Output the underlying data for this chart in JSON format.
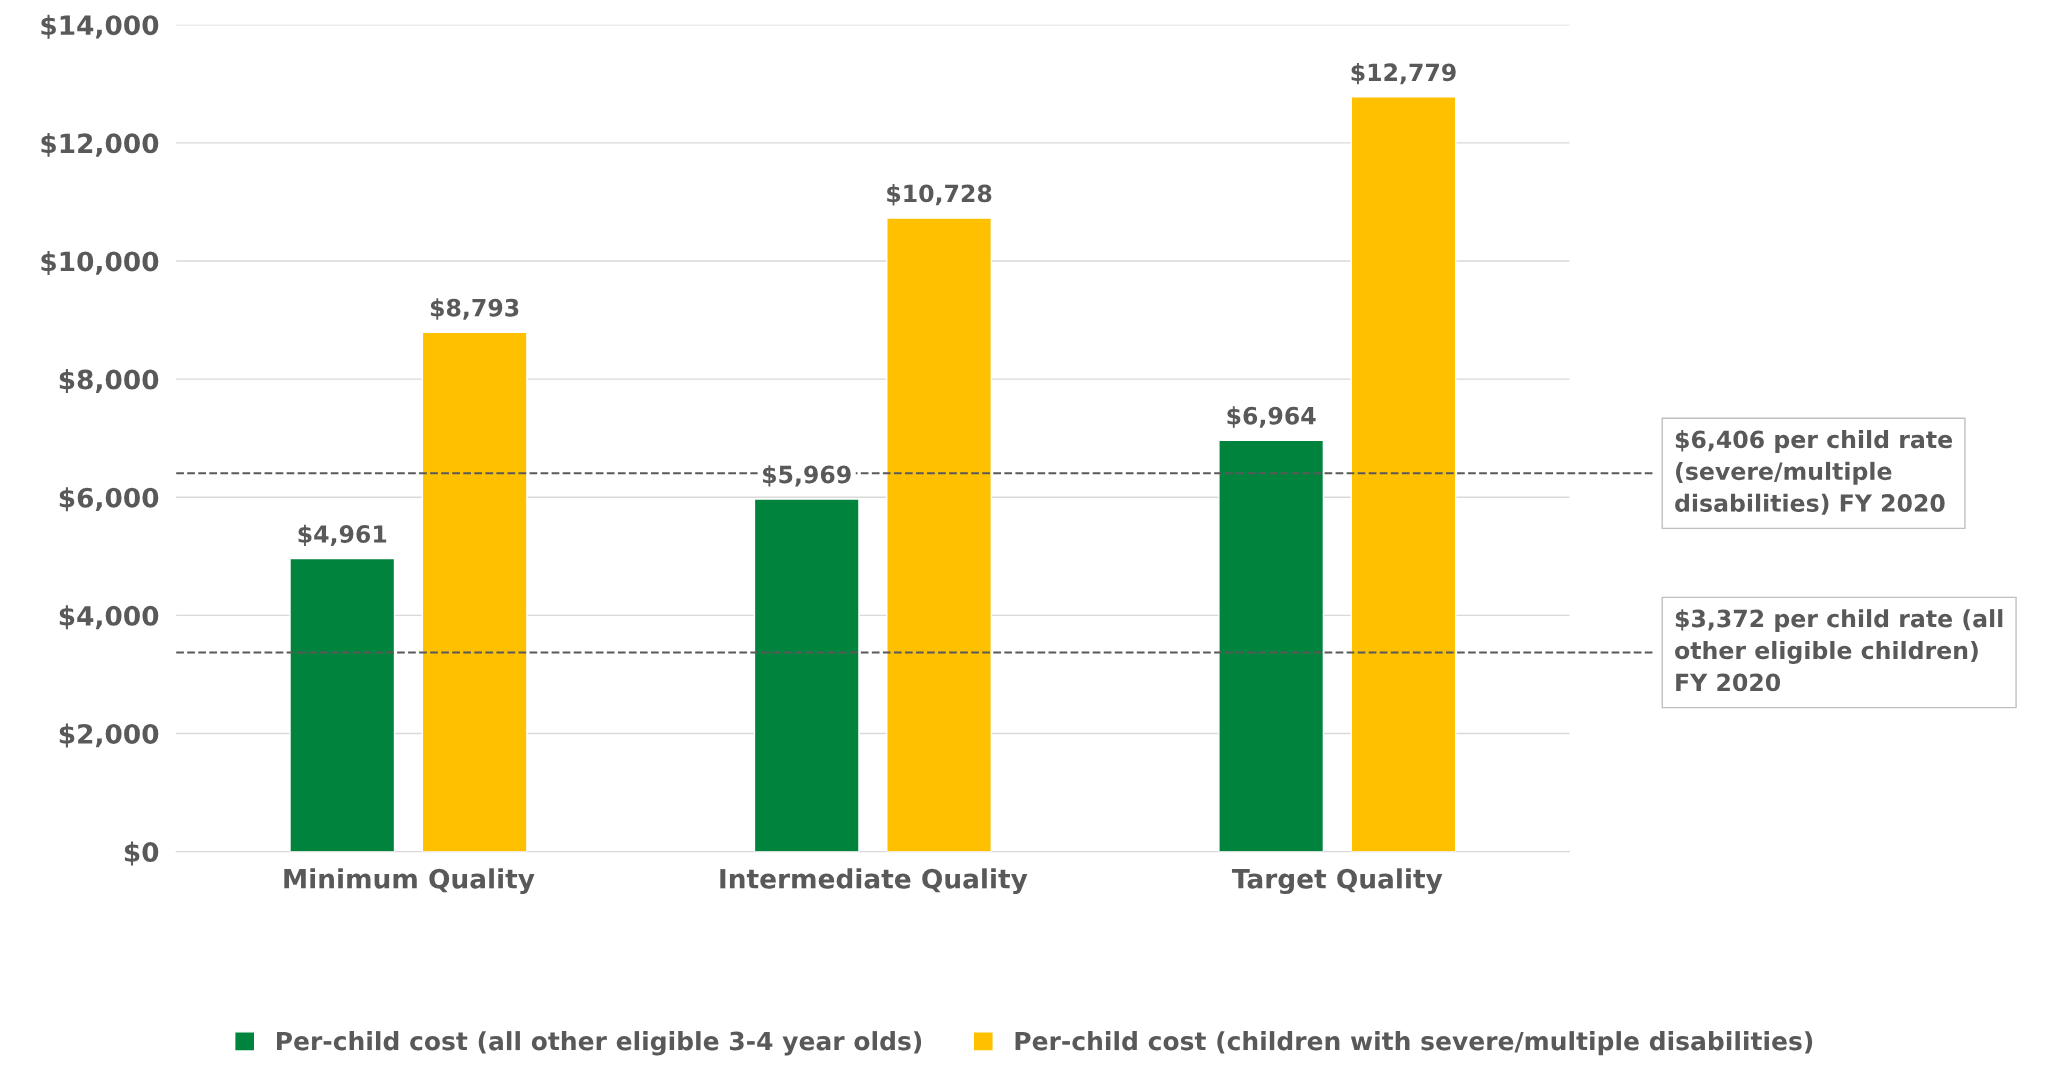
{
  "chart_data": {
    "type": "bar",
    "categories": [
      "Minimum Quality",
      "Intermediate Quality",
      "Target Quality"
    ],
    "series": [
      {
        "name": "Per-child cost (all other eligible 3-4 year olds)",
        "color": "#00843d",
        "values": [
          4961,
          5969,
          6964
        ],
        "value_labels": [
          "$4,961",
          "$5,969",
          "$6,964"
        ]
      },
      {
        "name": "Per-child cost (children with severe/multiple disabilities)",
        "color": "#ffc000",
        "values": [
          8793,
          10728,
          12779
        ],
        "value_labels": [
          "$8,793",
          "$10,728",
          "$12,779"
        ]
      }
    ],
    "ylim": [
      0,
      14000
    ],
    "yticks": [
      {
        "value": 0,
        "label": "$0"
      },
      {
        "value": 2000,
        "label": "$2,000"
      },
      {
        "value": 4000,
        "label": "$4,000"
      },
      {
        "value": 6000,
        "label": "$6,000"
      },
      {
        "value": 8000,
        "label": "$8,000"
      },
      {
        "value": 10000,
        "label": "$10,000"
      },
      {
        "value": 12000,
        "label": "$12,000"
      },
      {
        "value": 14000,
        "label": "$14,000"
      }
    ],
    "ref_lines": [
      {
        "axis": "y",
        "value": 6406,
        "label": "$6,406 per child rate\n(severe/multiple\ndisabilities) FY 2020",
        "color": "#595959",
        "line_style": "dashed"
      },
      {
        "axis": "y",
        "value": 3372,
        "label": "$3,372 per child rate (all\nother eligible children)\nFY 2020",
        "color": "#595959",
        "line_style": "dashed"
      }
    ],
    "grid": "y",
    "legend": "bottom"
  }
}
